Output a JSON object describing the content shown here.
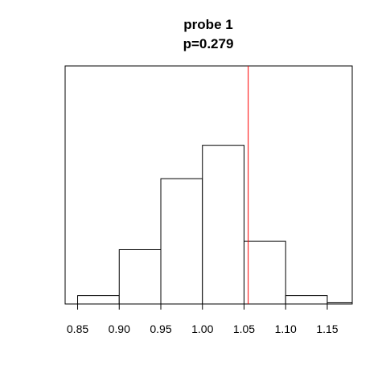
{
  "chart_data": {
    "type": "bar",
    "title": "probe 1",
    "subtitle": "p=0.279",
    "xlabel": "",
    "ylabel": "",
    "bin_edges": [
      0.85,
      0.9,
      0.95,
      1.0,
      1.05,
      1.1,
      1.15,
      1.2
    ],
    "values": [
      2,
      13,
      30,
      38,
      15,
      2,
      0.3
    ],
    "x_ticks": [
      "0.85",
      "0.90",
      "0.95",
      "1.00",
      "1.05",
      "1.10",
      "1.15"
    ],
    "xlim": [
      0.835,
      1.18
    ],
    "ylim": [
      0,
      57
    ],
    "y_axis_shown": false,
    "reference_line": {
      "x": 1.055,
      "color": "#ff0000"
    },
    "grid": false,
    "bar_fill": "#ffffff",
    "bar_stroke": "#000000"
  }
}
